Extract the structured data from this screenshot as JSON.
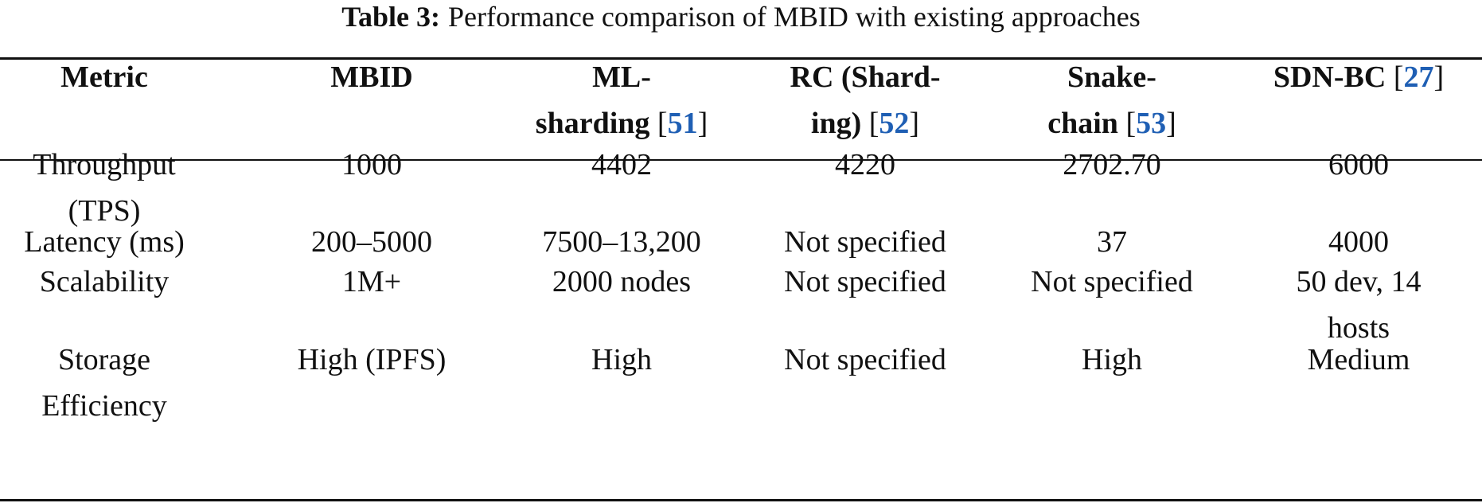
{
  "caption": {
    "label": "Table 3:",
    "text": "Performance comparison of MBID with existing approaches"
  },
  "header": {
    "metric": "Metric",
    "mbid": "MBID",
    "ml_sharding_1": "ML-",
    "ml_sharding_2": "sharding",
    "ml_sharding_ref": "51",
    "rc_1": "RC (Shard-",
    "rc_2": "ing)",
    "rc_ref": "52",
    "snake_1": "Snake-",
    "snake_2": "chain",
    "snake_ref": "53",
    "sdn": "SDN-BC",
    "sdn_ref": "27"
  },
  "rows": [
    {
      "metric_1": "Throughput",
      "metric_2": "(TPS)",
      "mbid": "1000",
      "ml_sharding": "4402",
      "rc": "4220",
      "snake": "2702.70",
      "sdn_1": "6000",
      "sdn_2": ""
    },
    {
      "metric_1": "Latency (ms)",
      "metric_2": "",
      "mbid": "200–5000",
      "ml_sharding": "7500–13,200",
      "rc": "Not specified",
      "snake": "37",
      "sdn_1": "4000",
      "sdn_2": ""
    },
    {
      "metric_1": "Scalability",
      "metric_2": "",
      "mbid": "1M+",
      "ml_sharding": "2000 nodes",
      "rc": "Not specified",
      "snake": "Not specified",
      "sdn_1": "50 dev, 14",
      "sdn_2": "hosts"
    },
    {
      "metric_1": "Storage",
      "metric_2": "Efficiency",
      "mbid": "High (IPFS)",
      "ml_sharding": "High",
      "rc": "Not specified",
      "snake": "High",
      "sdn_1": "Medium",
      "sdn_2": ""
    }
  ]
}
